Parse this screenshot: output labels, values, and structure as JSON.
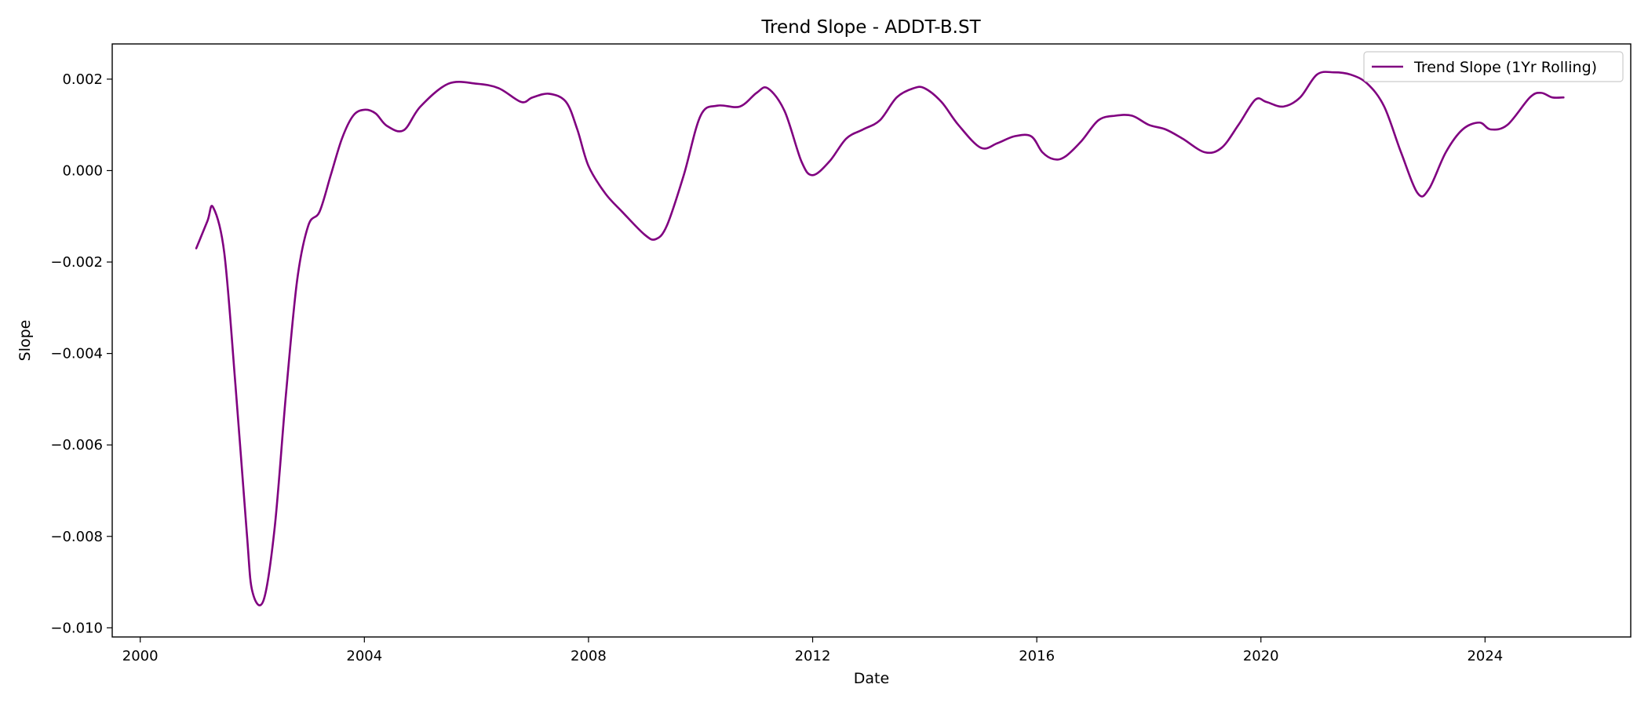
{
  "chart_data": {
    "type": "line",
    "title": "Trend Slope - ADDT-B.ST",
    "xlabel": "Date",
    "ylabel": "Slope",
    "xlim": [
      1999.5,
      2026.6
    ],
    "ylim": [
      -0.0102,
      0.00277
    ],
    "x_ticks": [
      2000,
      2004,
      2008,
      2012,
      2016,
      2020,
      2024
    ],
    "x_tick_labels": [
      "2000",
      "2004",
      "2008",
      "2012",
      "2016",
      "2020",
      "2024"
    ],
    "y_ticks": [
      0.002,
      0.0,
      -0.002,
      -0.004,
      -0.006,
      -0.008,
      -0.01
    ],
    "y_tick_labels": [
      "0.002",
      "0.000",
      "−0.002",
      "−0.004",
      "−0.006",
      "−0.008",
      "−0.010"
    ],
    "grid": false,
    "legend_position": "top-right",
    "colors": {
      "series": "#800080",
      "axes": "#000000",
      "background": "#ffffff"
    },
    "series": [
      {
        "name": "Trend Slope (1Yr Rolling)",
        "x": [
          2001.0,
          2001.2,
          2001.3,
          2001.5,
          2001.7,
          2001.9,
          2002.0,
          2002.2,
          2002.4,
          2002.6,
          2002.8,
          2003.0,
          2003.2,
          2003.4,
          2003.6,
          2003.8,
          2004.0,
          2004.2,
          2004.4,
          2004.7,
          2005.0,
          2005.5,
          2006.0,
          2006.4,
          2006.8,
          2007.0,
          2007.3,
          2007.6,
          2007.8,
          2008.0,
          2008.3,
          2008.6,
          2009.0,
          2009.2,
          2009.4,
          2009.7,
          2010.0,
          2010.3,
          2010.7,
          2011.0,
          2011.2,
          2011.5,
          2011.8,
          2012.0,
          2012.3,
          2012.6,
          2012.9,
          2013.2,
          2013.5,
          2013.8,
          2014.0,
          2014.3,
          2014.6,
          2015.0,
          2015.3,
          2015.6,
          2015.9,
          2016.1,
          2016.3,
          2016.5,
          2016.8,
          2017.1,
          2017.4,
          2017.7,
          2018.0,
          2018.3,
          2018.6,
          2019.0,
          2019.3,
          2019.6,
          2019.9,
          2020.1,
          2020.4,
          2020.7,
          2021.0,
          2021.3,
          2021.6,
          2021.9,
          2022.2,
          2022.5,
          2022.8,
          2023.0,
          2023.3,
          2023.6,
          2023.9,
          2024.1,
          2024.4,
          2024.8,
          2025.0,
          2025.2,
          2025.4
        ],
        "y": [
          -0.0017,
          -0.0011,
          -0.0008,
          -0.0018,
          -0.0047,
          -0.0079,
          -0.0092,
          -0.0094,
          -0.0078,
          -0.0049,
          -0.0024,
          -0.0012,
          -0.0009,
          -0.0001,
          0.0007,
          0.0012,
          0.00133,
          0.00125,
          0.00098,
          0.00088,
          0.0014,
          0.0019,
          0.0019,
          0.0018,
          0.0015,
          0.0016,
          0.00168,
          0.0015,
          0.0009,
          0.0001,
          -0.0005,
          -0.0009,
          -0.0014,
          -0.0015,
          -0.0012,
          -0.0001,
          0.0012,
          0.00142,
          0.0014,
          0.0017,
          0.0018,
          0.0013,
          0.0002,
          -0.0001,
          0.0002,
          0.0007,
          0.0009,
          0.0011,
          0.0016,
          0.0018,
          0.0018,
          0.0015,
          0.001,
          0.0005,
          0.0006,
          0.00075,
          0.00075,
          0.0004,
          0.00025,
          0.0003,
          0.00065,
          0.0011,
          0.0012,
          0.0012,
          0.001,
          0.0009,
          0.0007,
          0.0004,
          0.0005,
          0.001,
          0.00155,
          0.0015,
          0.0014,
          0.0016,
          0.0021,
          0.00215,
          0.0021,
          0.0019,
          0.0014,
          0.0004,
          -0.0005,
          -0.0004,
          0.0004,
          0.0009,
          0.00105,
          0.0009,
          0.001,
          0.0016,
          0.0017,
          0.0016,
          0.0016
        ]
      }
    ]
  }
}
